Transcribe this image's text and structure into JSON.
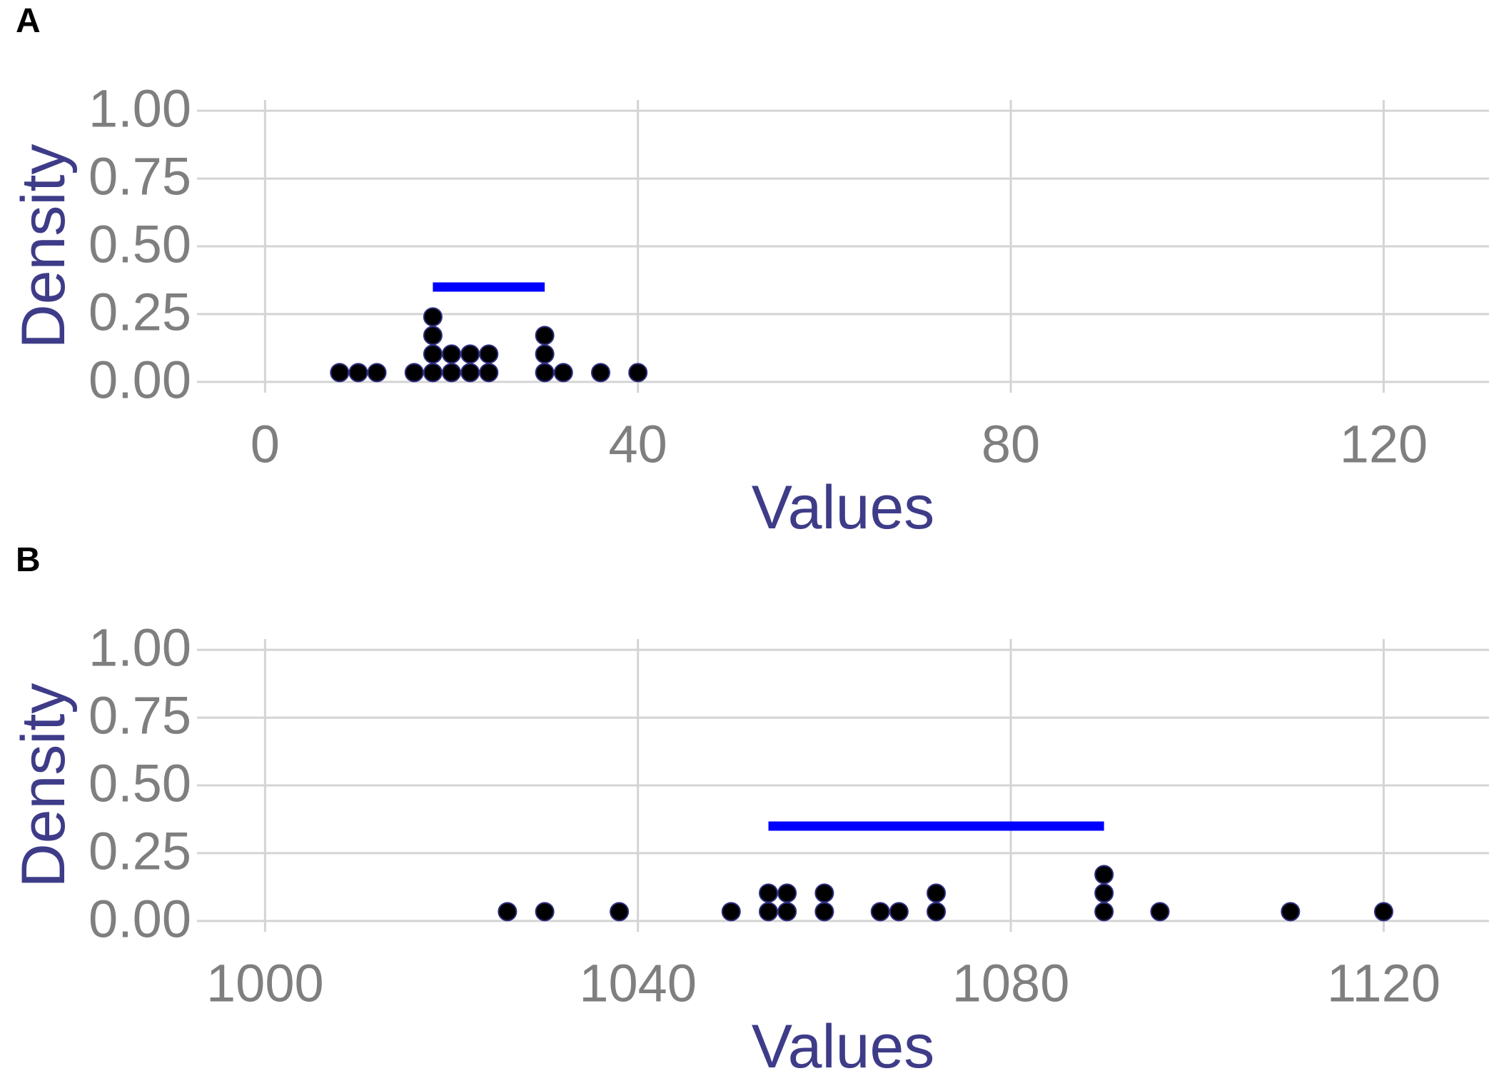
{
  "chart_data": [
    {
      "type": "dotplot",
      "panel_label": "A",
      "x_label": "Values",
      "y_label": "Density",
      "values": [
        8,
        10,
        12,
        16,
        18,
        18,
        18,
        18,
        20,
        20,
        22,
        22,
        24,
        24,
        30,
        30,
        30,
        32,
        36,
        40
      ],
      "color": "#000000",
      "outline": "#2e2e80",
      "segment": {
        "x": [
          18,
          30
        ],
        "y": 0.35,
        "color": "#0000ff"
      },
      "xlim": [
        -7.3,
        131.3
      ],
      "xticks": [
        0,
        40,
        80,
        120
      ],
      "ylim": [
        -0.04,
        1.04
      ],
      "yticks": [
        {
          "value": 0,
          "label": "0.00"
        },
        {
          "value": 0.25,
          "label": "0.25"
        },
        {
          "value": 0.5,
          "label": "0.50"
        },
        {
          "value": 0.75,
          "label": "0.75"
        },
        {
          "value": 1,
          "label": "1.00"
        }
      ],
      "grid": true
    },
    {
      "type": "dotplot",
      "panel_label": "B",
      "x_label": "Values",
      "y_label": "Density",
      "values": [
        1026,
        1030,
        1038,
        1050,
        1054,
        1054,
        1056,
        1056,
        1060,
        1060,
        1066,
        1068,
        1072,
        1072,
        1090,
        1090,
        1090,
        1096,
        1110,
        1120
      ],
      "color": "#000000",
      "outline": "#2e2e80",
      "segment": {
        "x": [
          1054,
          1090
        ],
        "y": 0.35,
        "color": "#0000ff"
      },
      "xlim": [
        992.7,
        1131.3
      ],
      "xticks": [
        1000,
        1040,
        1080,
        1120
      ],
      "ylim": [
        -0.04,
        1.04
      ],
      "yticks": [
        {
          "value": 0,
          "label": "0.00"
        },
        {
          "value": 0.25,
          "label": "0.25"
        },
        {
          "value": 0.5,
          "label": "0.50"
        },
        {
          "value": 0.75,
          "label": "0.75"
        },
        {
          "value": 1,
          "label": "1.00"
        }
      ],
      "grid": true
    }
  ]
}
